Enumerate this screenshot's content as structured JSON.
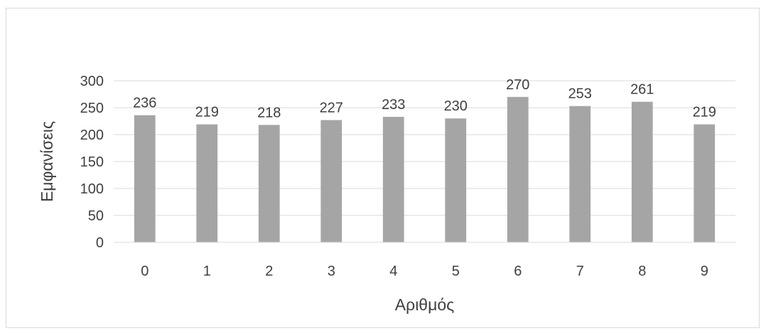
{
  "chart_data": {
    "type": "bar",
    "title": "",
    "xlabel": "Αριθμός",
    "ylabel": "Εμφανίσεις",
    "categories": [
      "0",
      "1",
      "2",
      "3",
      "4",
      "5",
      "6",
      "7",
      "8",
      "9"
    ],
    "values": [
      236,
      219,
      218,
      227,
      233,
      230,
      270,
      253,
      261,
      219
    ],
    "data_labels": [
      "236",
      "219",
      "218",
      "227",
      "233",
      "230",
      "270",
      "253",
      "261",
      "219"
    ],
    "ylim": [
      0,
      300
    ],
    "yticks": [
      0,
      50,
      100,
      150,
      200,
      250,
      300
    ],
    "ytick_labels": [
      "0",
      "50",
      "100",
      "150",
      "200",
      "250",
      "300"
    ],
    "grid": true,
    "legend": "none",
    "colors": {
      "bar": "#a5a5a5",
      "grid": "#d9d9d9",
      "text": "#404040"
    }
  }
}
